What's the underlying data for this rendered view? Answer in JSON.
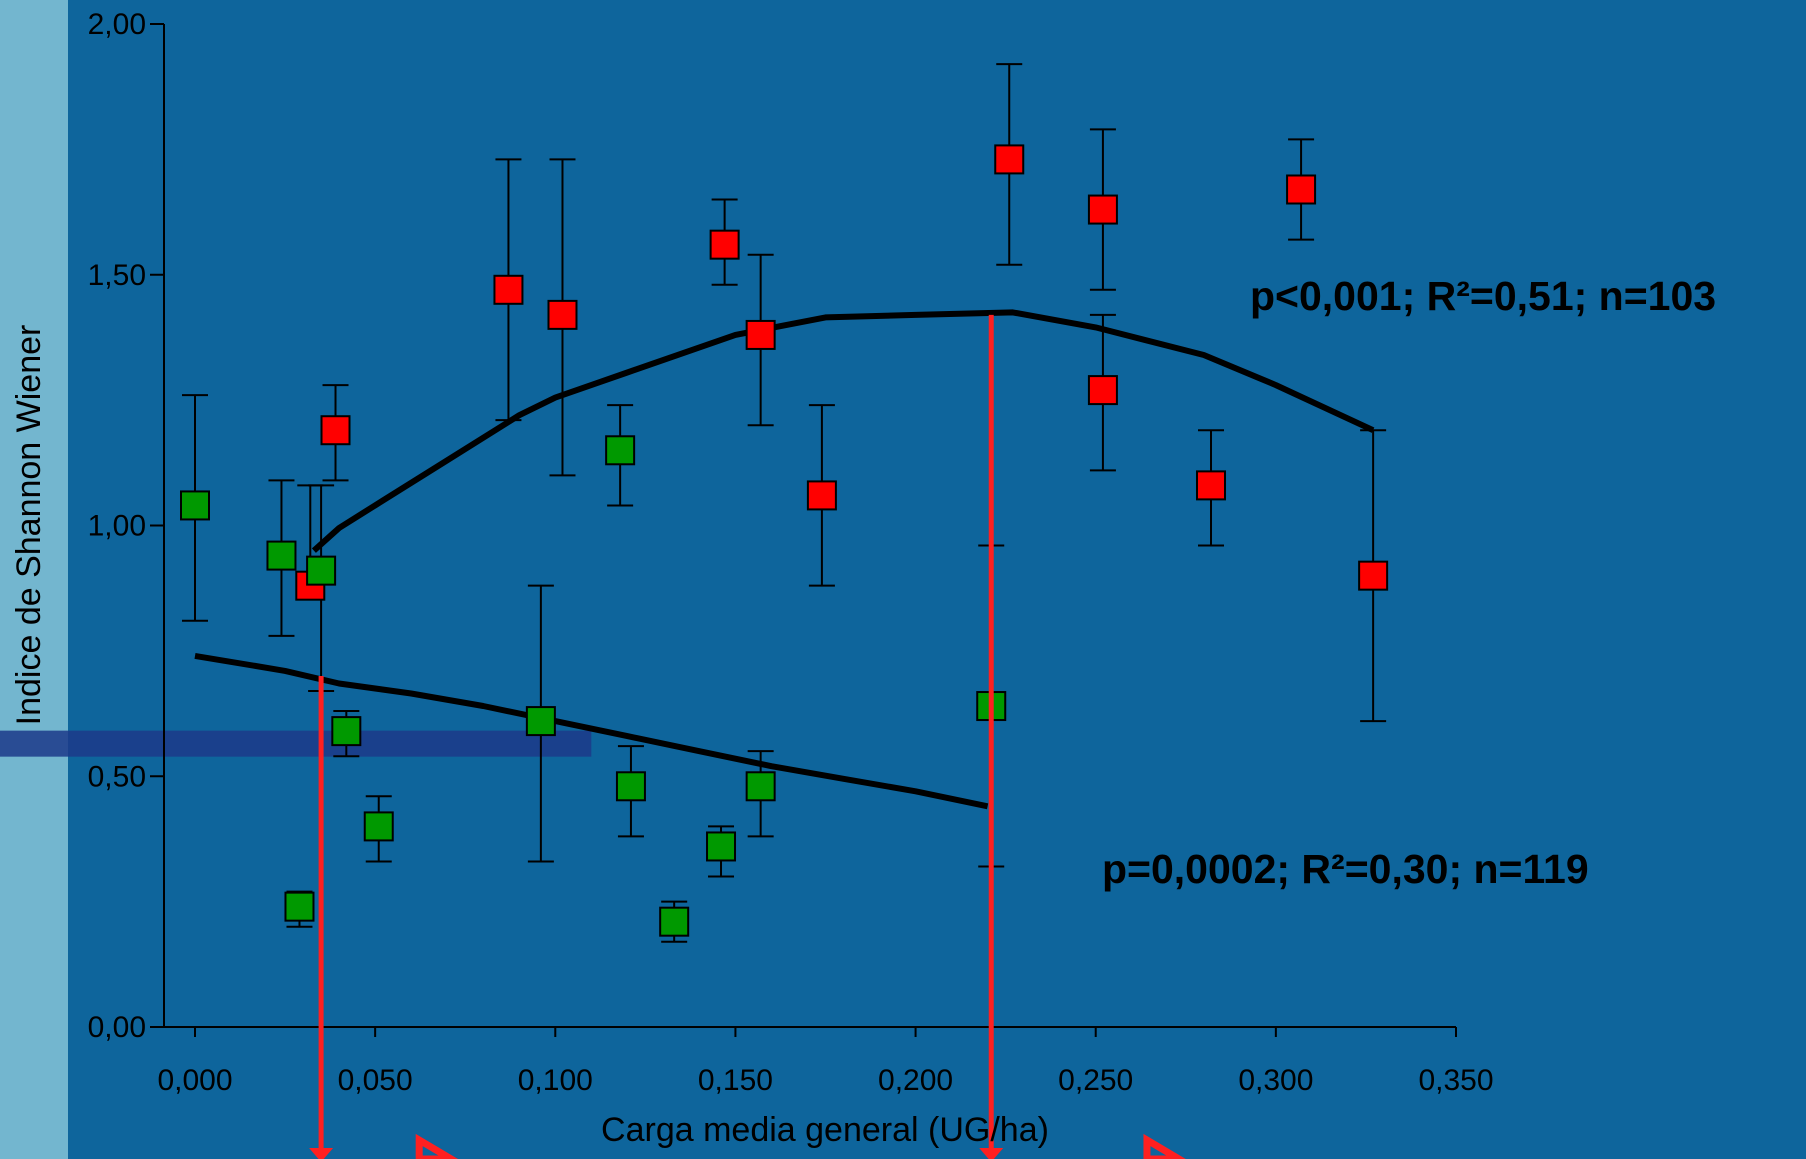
{
  "chart_data": {
    "type": "scatter",
    "xlabel": "Carga media general (UG/ha)",
    "ylabel": "Indice de Shannon Wiener",
    "xlim": [
      0,
      0.35
    ],
    "ylim": [
      0,
      2
    ],
    "x_ticks": [
      "0,000",
      "0,050",
      "0,100",
      "0,150",
      "0,200",
      "0,250",
      "0,300",
      "0,350"
    ],
    "x_tick_values": [
      0,
      0.05,
      0.1,
      0.15,
      0.2,
      0.25,
      0.3,
      0.35
    ],
    "y_ticks": [
      "0,00",
      "0,50",
      "1,00",
      "1,50",
      "2,00"
    ],
    "y_tick_values": [
      0,
      0.5,
      1.0,
      1.5,
      2.0
    ],
    "grid": false,
    "series": [
      {
        "color": "#ff0000",
        "points": [
          {
            "x": 0.032,
            "y": 0.88,
            "lo": 0.86,
            "hi": 1.08
          },
          {
            "x": 0.039,
            "y": 1.19,
            "lo": 1.09,
            "hi": 1.28
          },
          {
            "x": 0.087,
            "y": 1.47,
            "lo": 1.21,
            "hi": 1.73
          },
          {
            "x": 0.102,
            "y": 1.42,
            "lo": 1.1,
            "hi": 1.73
          },
          {
            "x": 0.147,
            "y": 1.56,
            "lo": 1.48,
            "hi": 1.65
          },
          {
            "x": 0.157,
            "y": 1.38,
            "lo": 1.2,
            "hi": 1.54
          },
          {
            "x": 0.174,
            "y": 1.06,
            "lo": 0.88,
            "hi": 1.24
          },
          {
            "x": 0.226,
            "y": 1.73,
            "lo": 1.52,
            "hi": 1.92
          },
          {
            "x": 0.252,
            "y": 1.63,
            "lo": 1.47,
            "hi": 1.79
          },
          {
            "x": 0.252,
            "y": 1.27,
            "lo": 1.11,
            "hi": 1.42
          },
          {
            "x": 0.282,
            "y": 1.08,
            "lo": 0.96,
            "hi": 1.19
          },
          {
            "x": 0.307,
            "y": 1.67,
            "lo": 1.57,
            "hi": 1.77
          },
          {
            "x": 0.327,
            "y": 0.9,
            "lo": 0.61,
            "hi": 1.19
          }
        ],
        "fit": [
          [
            0.033,
            0.95
          ],
          [
            0.04,
            0.995
          ],
          [
            0.05,
            1.04
          ],
          [
            0.07,
            1.13
          ],
          [
            0.09,
            1.22
          ],
          [
            0.1,
            1.255
          ],
          [
            0.12,
            1.305
          ],
          [
            0.15,
            1.38
          ],
          [
            0.175,
            1.415
          ],
          [
            0.2,
            1.42
          ],
          [
            0.227,
            1.425
          ],
          [
            0.25,
            1.395
          ],
          [
            0.28,
            1.34
          ],
          [
            0.3,
            1.28
          ],
          [
            0.327,
            1.19
          ]
        ],
        "annotation": "p<0,001; R²=0,51; n=103"
      },
      {
        "color": "#009900",
        "points": [
          {
            "x": 0.0,
            "y": 1.04,
            "lo": 0.81,
            "hi": 1.26
          },
          {
            "x": 0.024,
            "y": 0.94,
            "lo": 0.78,
            "hi": 1.09
          },
          {
            "x": 0.035,
            "y": 0.91,
            "lo": 0.67,
            "hi": 1.08
          },
          {
            "x": 0.029,
            "y": 0.24,
            "lo": 0.2,
            "hi": 0.27
          },
          {
            "x": 0.042,
            "y": 0.59,
            "lo": 0.54,
            "hi": 0.63
          },
          {
            "x": 0.051,
            "y": 0.4,
            "lo": 0.33,
            "hi": 0.46
          },
          {
            "x": 0.096,
            "y": 0.61,
            "lo": 0.33,
            "hi": 0.88
          },
          {
            "x": 0.118,
            "y": 1.15,
            "lo": 1.04,
            "hi": 1.24
          },
          {
            "x": 0.121,
            "y": 0.48,
            "lo": 0.38,
            "hi": 0.56
          },
          {
            "x": 0.133,
            "y": 0.21,
            "lo": 0.17,
            "hi": 0.25
          },
          {
            "x": 0.146,
            "y": 0.36,
            "lo": 0.3,
            "hi": 0.4
          },
          {
            "x": 0.157,
            "y": 0.48,
            "lo": 0.38,
            "hi": 0.55
          },
          {
            "x": 0.221,
            "y": 0.64,
            "lo": 0.32,
            "hi": 0.96
          }
        ],
        "fit": [
          [
            0.0,
            0.74
          ],
          [
            0.025,
            0.71
          ],
          [
            0.04,
            0.685
          ],
          [
            0.06,
            0.665
          ],
          [
            0.08,
            0.64
          ],
          [
            0.1,
            0.61
          ],
          [
            0.12,
            0.58
          ],
          [
            0.14,
            0.55
          ],
          [
            0.16,
            0.52
          ],
          [
            0.18,
            0.495
          ],
          [
            0.2,
            0.47
          ],
          [
            0.22,
            0.44
          ]
        ],
        "annotation": "p=0,0002; R²=0,30; n=119"
      }
    ],
    "markers": {
      "color": "#ff2020",
      "vertical_lines": [
        {
          "x": 0.035,
          "from_y": 0.7
        },
        {
          "x": 0.221,
          "from_y": 1.42
        }
      ],
      "highlight_band": {
        "color": "#1c3a8a",
        "x_to": 0.11,
        "y_center": 0.565
      },
      "arrow_heads_x": [
        0.065,
        0.267
      ]
    }
  }
}
